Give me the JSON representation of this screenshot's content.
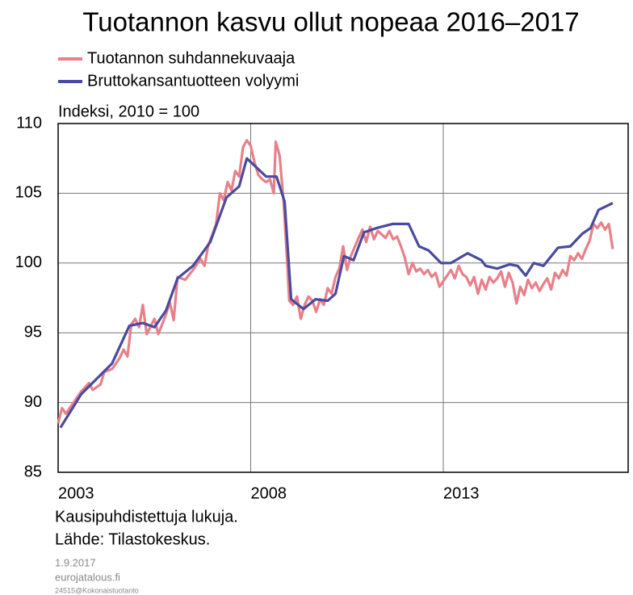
{
  "chart_data": {
    "type": "line",
    "title": "Tuotannon kasvu ollut nopeaa 2016–2017",
    "y_label": "Indeksi, 2010 = 100",
    "notes": [
      "Kausipuhdistettuja lukuja.",
      "Lähde: Tilastokeskus."
    ],
    "footer": [
      "1.9.2017",
      "eurojatalous.fi",
      "24515@Kokonaistuotanto"
    ],
    "xlim": [
      2003,
      2017.8
    ],
    "xticks": [
      2003,
      2008,
      2013
    ],
    "ylim": [
      85,
      110
    ],
    "yticks": [
      85,
      90,
      95,
      100,
      105,
      110
    ],
    "grid": true,
    "series": [
      {
        "name": "Tuotannon suhdannekuvaaja",
        "color": "#e8808a",
        "x": [
          2003.0,
          2003.1,
          2003.2,
          2003.4,
          2003.6,
          2003.8,
          2003.9,
          2004.1,
          2004.2,
          2004.4,
          2004.6,
          2004.7,
          2004.8,
          2004.9,
          2005.0,
          2005.1,
          2005.2,
          2005.3,
          2005.5,
          2005.6,
          2005.8,
          2005.9,
          2006.0,
          2006.1,
          2006.3,
          2006.5,
          2006.7,
          2006.8,
          2006.9,
          2007.0,
          2007.1,
          2007.2,
          2007.3,
          2007.4,
          2007.5,
          2007.6,
          2007.7,
          2007.8,
          2007.9,
          2008.0,
          2008.1,
          2008.2,
          2008.3,
          2008.4,
          2008.5,
          2008.6,
          2008.65,
          2008.75,
          2008.85,
          2008.95,
          2009.0,
          2009.1,
          2009.2,
          2009.3,
          2009.4,
          2009.5,
          2009.6,
          2009.7,
          2009.8,
          2009.9,
          2010.0,
          2010.1,
          2010.2,
          2010.3,
          2010.4,
          2010.5,
          2010.6,
          2010.8,
          2010.9,
          2011.0,
          2011.1,
          2011.2,
          2011.3,
          2011.5,
          2011.6,
          2011.7,
          2011.8,
          2011.9,
          2012.0,
          2012.1,
          2012.2,
          2012.3,
          2012.4,
          2012.5,
          2012.6,
          2012.7,
          2012.8,
          2012.9,
          2013.0,
          2013.2,
          2013.3,
          2013.4,
          2013.5,
          2013.6,
          2013.7,
          2013.8,
          2013.9,
          2014.0,
          2014.1,
          2014.2,
          2014.3,
          2014.4,
          2014.5,
          2014.6,
          2014.7,
          2014.8,
          2014.9,
          2015.0,
          2015.1,
          2015.2,
          2015.3,
          2015.4,
          2015.5,
          2015.6,
          2015.7,
          2015.8,
          2015.9,
          2016.0,
          2016.1,
          2016.2,
          2016.3,
          2016.4,
          2016.5,
          2016.6,
          2016.7,
          2016.8,
          2016.9,
          2017.0,
          2017.1,
          2017.2,
          2017.3,
          2017.4
        ],
        "values": [
          88.5,
          89.6,
          89.2,
          90.0,
          90.8,
          91.4,
          90.9,
          91.3,
          92.2,
          92.4,
          93.2,
          93.8,
          93.3,
          95.6,
          96.0,
          95.4,
          97.0,
          94.9,
          96.0,
          94.9,
          96.3,
          97.2,
          95.9,
          99.0,
          98.8,
          99.5,
          100.3,
          99.8,
          101.3,
          102.0,
          102.8,
          105.0,
          104.5,
          105.8,
          105.2,
          106.6,
          106.2,
          108.3,
          108.8,
          108.4,
          107.2,
          106.3,
          106.0,
          105.8,
          106.0,
          105.0,
          108.7,
          107.7,
          104.5,
          100.0,
          97.3,
          97.0,
          97.6,
          96.0,
          97.0,
          97.6,
          97.3,
          96.5,
          97.4,
          97.0,
          98.2,
          97.8,
          99.0,
          99.6,
          101.2,
          99.5,
          100.5,
          101.8,
          102.4,
          101.5,
          102.6,
          101.7,
          102.3,
          101.8,
          102.3,
          101.7,
          101.9,
          101.2,
          100.4,
          99.2,
          100.0,
          99.4,
          99.6,
          99.2,
          99.5,
          99.0,
          99.3,
          98.3,
          98.7,
          99.5,
          98.9,
          99.8,
          99.2,
          99.0,
          98.4,
          99.0,
          97.8,
          98.8,
          98.1,
          99.0,
          98.6,
          98.9,
          99.4,
          98.3,
          99.3,
          98.6,
          97.1,
          98.3,
          97.7,
          98.8,
          98.2,
          98.6,
          98.0,
          98.5,
          98.9,
          98.1,
          99.3,
          98.9,
          99.5,
          99.1,
          100.5,
          100.2,
          100.7,
          100.3,
          101.0,
          101.6,
          102.8,
          102.5,
          102.9,
          102.4,
          102.8,
          101.0
        ]
      },
      {
        "name": "Bruttokansantuotteen volyymi",
        "color": "#4a4a9e",
        "x": [
          2003.06,
          2003.6,
          2004.0,
          2004.4,
          2004.85,
          2005.2,
          2005.5,
          2005.8,
          2006.1,
          2006.5,
          2006.95,
          2007.37,
          2007.7,
          2007.9,
          2008.17,
          2008.4,
          2008.67,
          2008.88,
          2009.05,
          2009.37,
          2009.68,
          2010.0,
          2010.2,
          2010.42,
          2010.67,
          2010.94,
          2011.26,
          2011.68,
          2012.1,
          2012.37,
          2012.62,
          2012.94,
          2013.2,
          2013.63,
          2013.99,
          2014.1,
          2014.4,
          2014.72,
          2014.93,
          2015.14,
          2015.35,
          2015.6,
          2015.98,
          2016.3,
          2016.61,
          2016.82,
          2017.03,
          2017.4
        ],
        "values": [
          88.2,
          90.6,
          91.7,
          92.8,
          95.5,
          95.7,
          95.4,
          96.6,
          98.9,
          99.8,
          101.5,
          104.7,
          105.5,
          107.5,
          106.8,
          106.2,
          106.2,
          104.4,
          97.4,
          96.7,
          97.4,
          97.3,
          97.8,
          100.5,
          100.2,
          102.2,
          102.5,
          102.8,
          102.8,
          101.2,
          100.9,
          100.0,
          100.0,
          100.7,
          100.2,
          99.8,
          99.6,
          99.9,
          99.8,
          99.1,
          100.0,
          99.8,
          101.1,
          101.2,
          102.1,
          102.5,
          103.8,
          104.3
        ]
      }
    ]
  }
}
